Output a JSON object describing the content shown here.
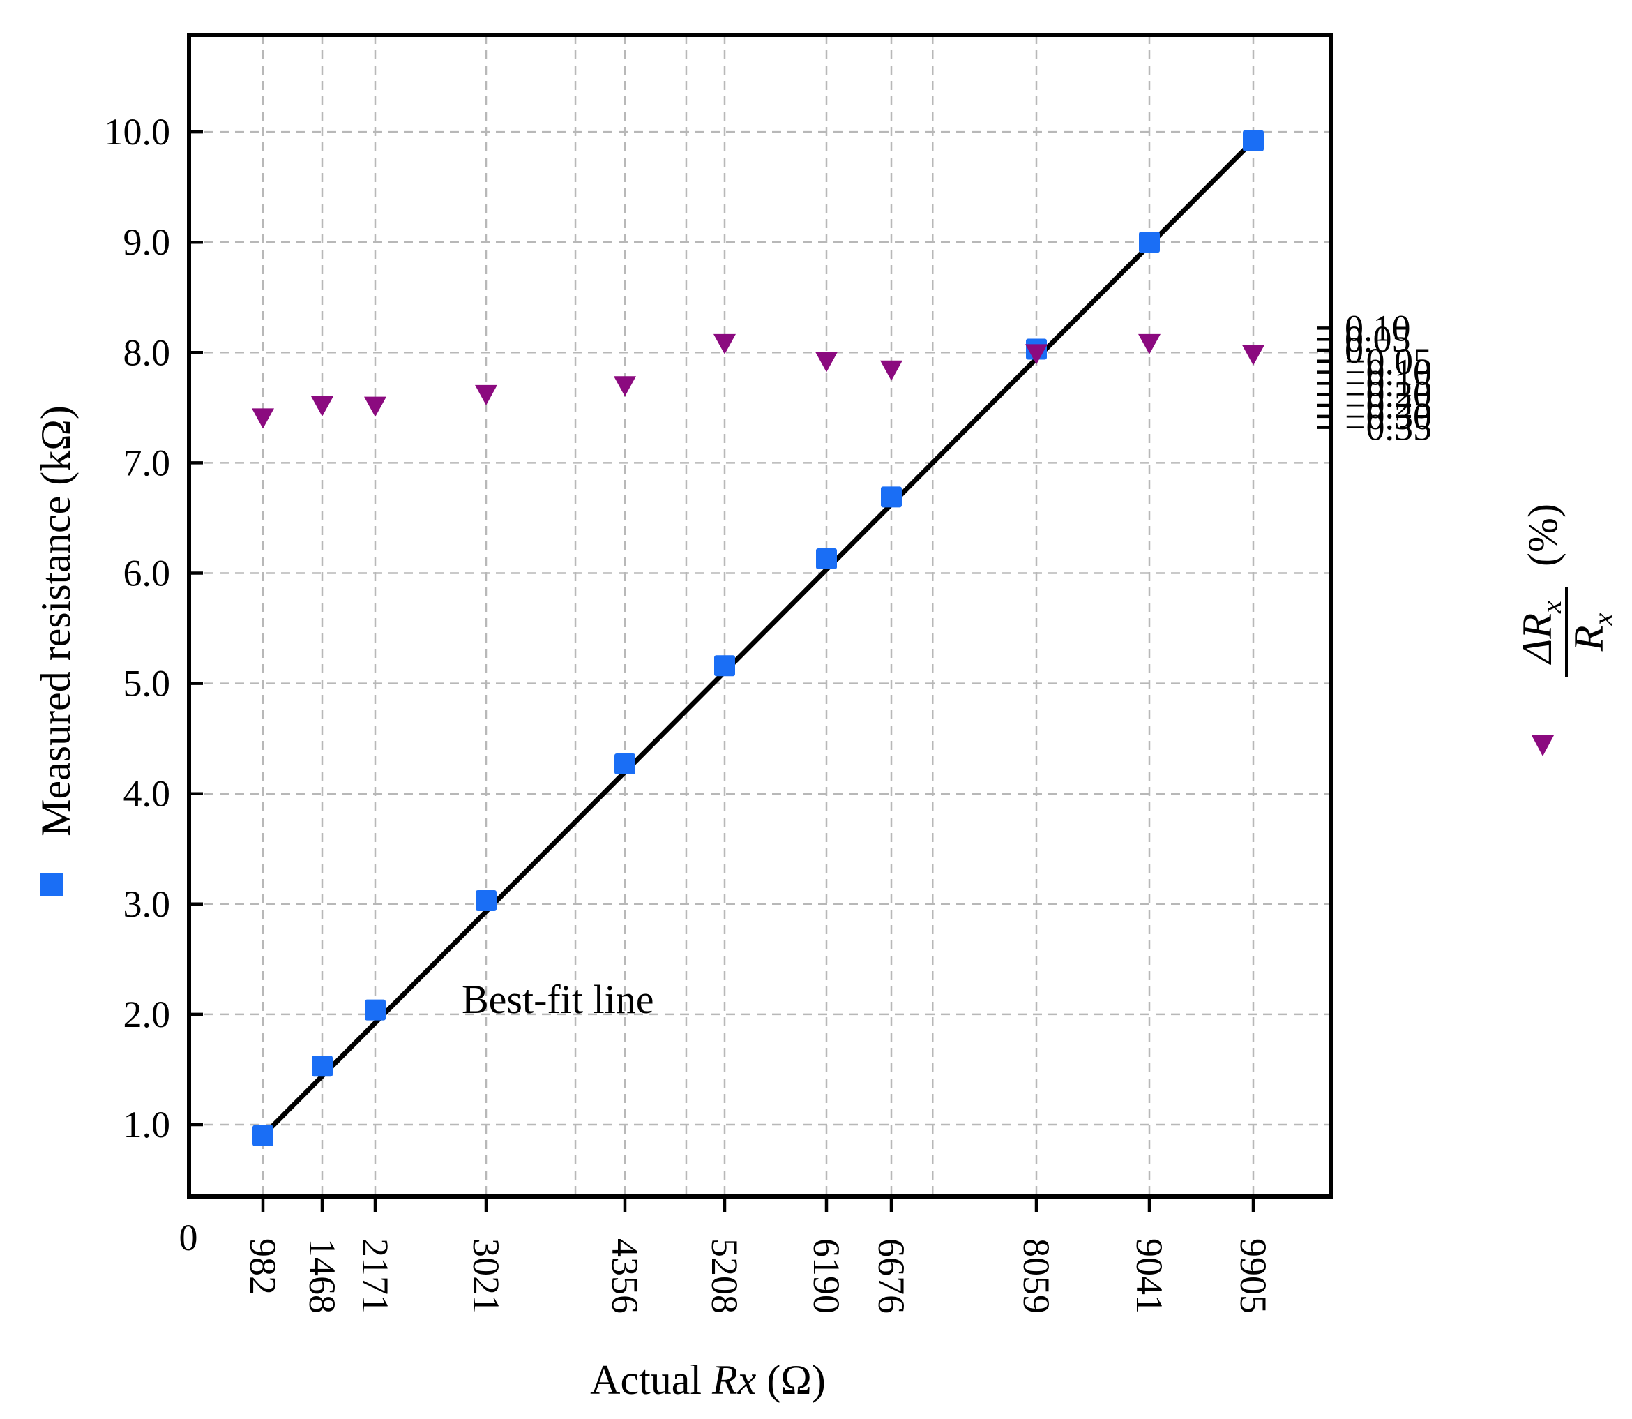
{
  "chart_data": {
    "type": "scatter",
    "xlabel": {
      "prefix": "Actual ",
      "italic": "Rx",
      "suffix": " (Ω)"
    },
    "ylabel_left": "Measured resistance (kΩ)",
    "ylabel_right": {
      "numerator": "ΔR",
      "denominator": "R",
      "subscript": "x",
      "suffix": "(%)"
    },
    "x_origin_label": "0",
    "x_ticks": [
      982,
      1468,
      2171,
      3021,
      4356,
      5208,
      6190,
      6676,
      8059,
      9041,
      9905
    ],
    "x_tick_labels": [
      "982",
      "1468",
      "2171",
      "3021",
      "4356",
      "5208",
      "6190",
      "6676",
      "8059",
      "9041",
      "9905"
    ],
    "y_left_range": [
      0,
      10.8
    ],
    "y_left_ticks": [
      1,
      2,
      3,
      4,
      5,
      6,
      7,
      8,
      9,
      10
    ],
    "y_left_tick_labels": [
      "1.0",
      "2.0",
      "3.0",
      "4.0",
      "5.0",
      "6.0",
      "7.0",
      "8.0",
      "9.0",
      "10.0"
    ],
    "y_right_ticks": [
      0.1,
      0.05,
      0,
      -0.05,
      -0.1,
      -0.15,
      -0.2,
      -0.25,
      -0.3,
      -0.35
    ],
    "y_right_tick_labels": [
      "0.10",
      "0.05",
      "0",
      "−0.05",
      "−0.10",
      "−0.15",
      "−0.20",
      "−0.25",
      "−0.30",
      "−0.35"
    ],
    "series": [
      {
        "axis": "left",
        "marker": "square",
        "color": "#1a6ef5",
        "x": [
          982,
          1468,
          2171,
          3021,
          4356,
          5208,
          6190,
          6676,
          8059,
          9041,
          9905
        ],
        "y": [
          0.9,
          1.53,
          2.04,
          3.03,
          4.27,
          5.16,
          6.13,
          6.69,
          8.03,
          9.0,
          9.92
        ]
      },
      {
        "axis": "right",
        "marker": "triangle-down",
        "color": "#8b0a7f",
        "x": [
          982,
          1468,
          2171,
          3021,
          4356,
          5208,
          6190,
          6676,
          8059,
          9041,
          9905
        ],
        "y": [
          -0.308,
          -0.253,
          -0.255,
          -0.202,
          -0.162,
          0.029,
          -0.052,
          -0.091,
          -0.017,
          0.029,
          -0.021
        ]
      }
    ],
    "fit_line": {
      "x": [
        982,
        9905
      ],
      "y": [
        0.9,
        9.92
      ]
    },
    "annotation": "Best-fit line",
    "vertical_grid_x": [
      982,
      1468,
      2171,
      3021,
      3880,
      4356,
      4880,
      5208,
      6190,
      6676,
      7070,
      8059,
      9041,
      9905
    ],
    "grid": true
  }
}
